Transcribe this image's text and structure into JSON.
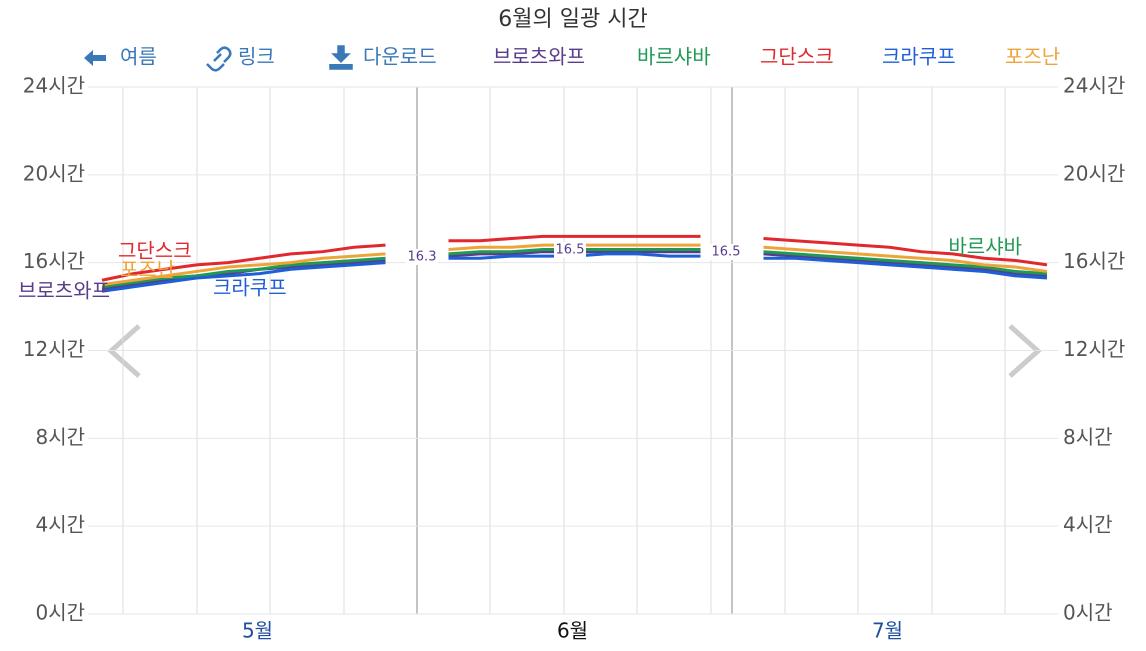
{
  "toolbar": [
    "여름",
    "링크",
    "다운로드"
  ],
  "chart_data": {
    "type": "line",
    "title": "6월의 일광 시간",
    "categories": [
      null,
      null,
      null,
      null,
      null,
      "5월",
      null,
      null,
      null,
      null,
      null,
      null,
      null,
      null,
      null,
      "6월",
      null,
      null,
      null,
      null,
      null,
      null,
      null,
      null,
      null,
      "7월",
      null,
      null,
      null,
      null,
      null
    ],
    "series": [
      {
        "name": "브로츠와프",
        "color": "#5a3c8c",
        "values": [
          14.8,
          15.0,
          15.2,
          15.4,
          15.5,
          15.7,
          15.8,
          15.9,
          16.0,
          16.1,
          null,
          16.3,
          16.4,
          16.4,
          16.5,
          16.5,
          16.5,
          16.5,
          16.5,
          16.5,
          null,
          16.4,
          16.3,
          16.2,
          16.1,
          16.0,
          15.9,
          15.8,
          15.7,
          15.5,
          15.4
        ]
      },
      {
        "name": "바르샤바",
        "color": "#1f9a55",
        "values": [
          14.9,
          15.1,
          15.3,
          15.4,
          15.6,
          15.7,
          15.9,
          16.0,
          16.1,
          16.2,
          null,
          16.4,
          16.5,
          16.5,
          16.6,
          16.6,
          16.6,
          16.6,
          16.6,
          16.6,
          null,
          16.5,
          16.4,
          16.3,
          16.2,
          16.1,
          16.0,
          15.9,
          15.8,
          15.6,
          15.5
        ]
      },
      {
        "name": "그단스크",
        "color": "#e0282e",
        "values": [
          15.2,
          15.5,
          15.7,
          15.9,
          16.0,
          16.2,
          16.4,
          16.5,
          16.7,
          16.8,
          null,
          17.0,
          17.0,
          17.1,
          17.2,
          17.2,
          17.2,
          17.2,
          17.2,
          17.2,
          null,
          17.1,
          17.0,
          16.9,
          16.8,
          16.7,
          16.5,
          16.4,
          16.2,
          16.1,
          15.9
        ]
      },
      {
        "name": "크라쿠프",
        "color": "#1e5fd8",
        "values": [
          14.7,
          14.9,
          15.1,
          15.3,
          15.4,
          15.5,
          15.7,
          15.8,
          15.9,
          16.0,
          null,
          16.2,
          16.2,
          16.3,
          16.3,
          16.3,
          16.4,
          16.4,
          16.3,
          16.3,
          null,
          16.2,
          16.2,
          16.1,
          16.0,
          15.9,
          15.8,
          15.7,
          15.6,
          15.4,
          15.3
        ]
      },
      {
        "name": "포즈난",
        "color": "#eda53a",
        "values": [
          15.0,
          15.2,
          15.4,
          15.6,
          15.8,
          15.9,
          16.0,
          16.2,
          16.3,
          16.4,
          null,
          16.6,
          16.7,
          16.7,
          16.8,
          16.8,
          16.8,
          16.8,
          16.8,
          16.8,
          null,
          16.7,
          16.6,
          16.5,
          16.4,
          16.3,
          16.2,
          16.1,
          15.9,
          15.8,
          15.6
        ]
      }
    ],
    "boundary_labels": [
      16.3,
      16.5,
      16.5
    ],
    "ylim": [
      0,
      24
    ],
    "yticks": [
      {
        "value": 0,
        "label": "0시간"
      },
      {
        "value": 4,
        "label": "4시간"
      },
      {
        "value": 8,
        "label": "8시간"
      },
      {
        "value": 12,
        "label": "12시간"
      },
      {
        "value": 16,
        "label": "16시간"
      },
      {
        "value": 20,
        "label": "20시간"
      },
      {
        "value": 24,
        "label": "24시간"
      }
    ],
    "grid": true
  }
}
